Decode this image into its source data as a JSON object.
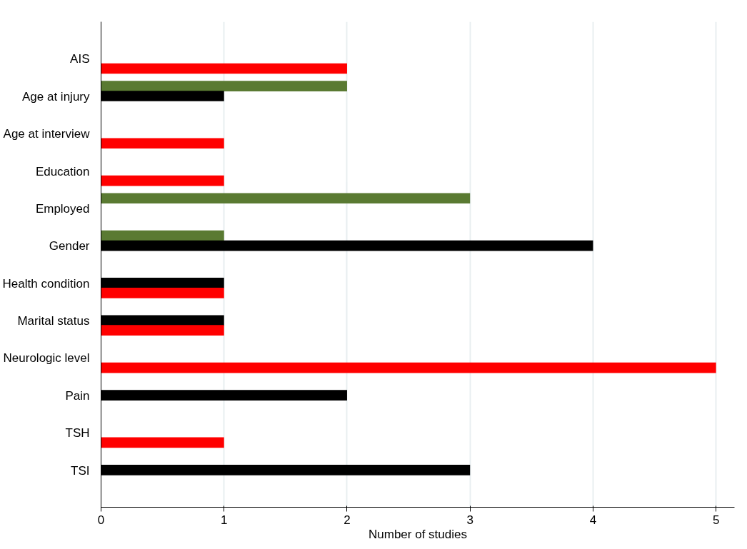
{
  "chart_data": {
    "type": "bar",
    "orientation": "horizontal",
    "xlabel": "Number of studies",
    "categories": [
      "AIS",
      "Age at injury",
      "Age at interview",
      "Education",
      "Employed",
      "Gender",
      "Health condition",
      "Marital status",
      "Neurologic level",
      "Pain",
      "TSH",
      "TSI"
    ],
    "series": [
      {
        "color": "#5a7a32",
        "values": [
          null,
          2,
          null,
          null,
          3,
          1,
          null,
          null,
          null,
          null,
          null,
          null
        ]
      },
      {
        "color": "#000000",
        "values": [
          null,
          1,
          null,
          null,
          null,
          4,
          1,
          1,
          null,
          2,
          null,
          3
        ]
      },
      {
        "color": "#ff0000",
        "values": [
          2,
          null,
          1,
          1,
          null,
          null,
          1,
          1,
          5,
          null,
          1,
          null
        ]
      }
    ],
    "xlim": [
      0,
      5.15
    ],
    "xticks": [
      0,
      1,
      2,
      3,
      4,
      5
    ],
    "grid": "x"
  }
}
